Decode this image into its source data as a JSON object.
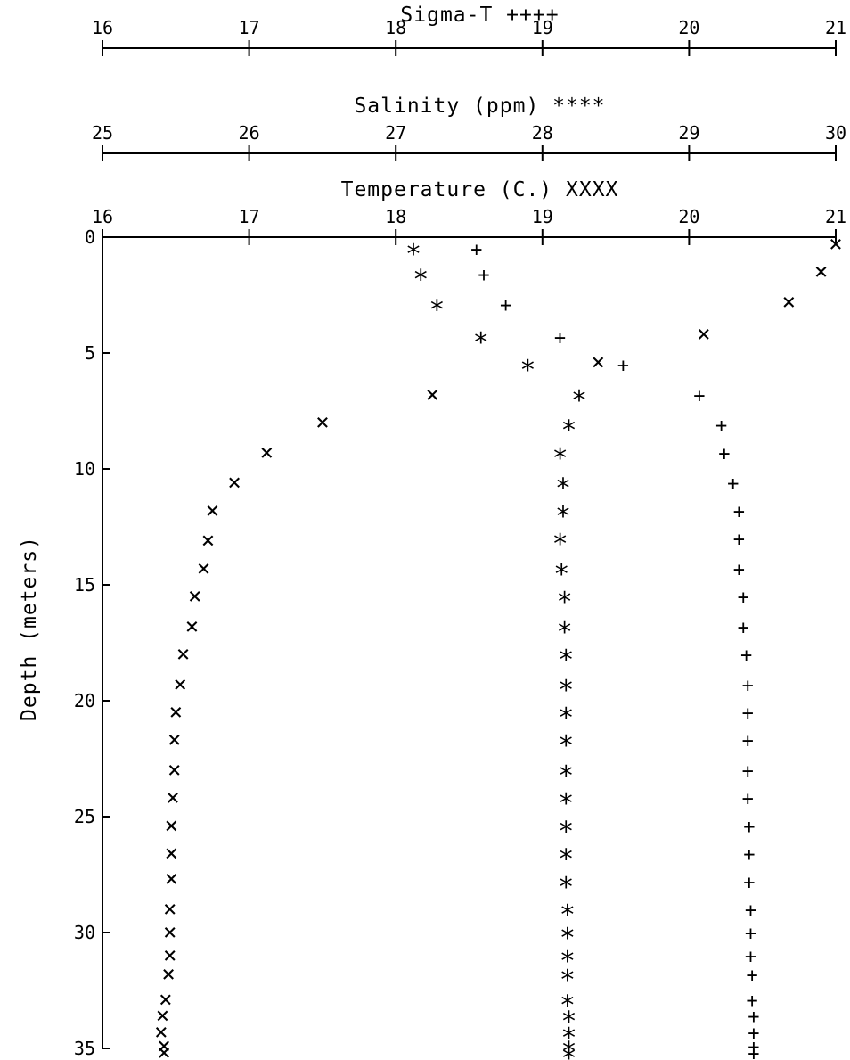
{
  "chart_data": {
    "type": "scatter",
    "ylabel": "Depth (meters)",
    "y_axis": {
      "label": "Depth (meters)",
      "range": [
        0,
        35
      ],
      "ticks": [
        0,
        5,
        10,
        15,
        20,
        25,
        30,
        35
      ],
      "inverted": true
    },
    "top_axes": [
      {
        "key": "sigma",
        "title": "Sigma-T  ++++",
        "range": [
          16,
          21
        ],
        "ticks": [
          16,
          17,
          18,
          19,
          20,
          21
        ]
      },
      {
        "key": "salinity",
        "title": "Salinity (ppm)  ****",
        "range": [
          25,
          30
        ],
        "ticks": [
          25,
          26,
          27,
          28,
          29,
          30
        ]
      },
      {
        "key": "temperature",
        "title": "Temperature (C.)  XXXX",
        "range": [
          16,
          21
        ],
        "ticks": [
          16,
          17,
          18,
          19,
          20,
          21
        ]
      }
    ],
    "series": [
      {
        "name": "Sigma-T",
        "marker": "+",
        "axis": "sigma",
        "points": [
          [
            18.55,
            0.5
          ],
          [
            18.6,
            1.6
          ],
          [
            18.75,
            2.9
          ],
          [
            19.12,
            4.3
          ],
          [
            19.55,
            5.5
          ],
          [
            20.07,
            6.8
          ],
          [
            20.22,
            8.1
          ],
          [
            20.24,
            9.3
          ],
          [
            20.3,
            10.6
          ],
          [
            20.34,
            11.8
          ],
          [
            20.34,
            13.0
          ],
          [
            20.34,
            14.3
          ],
          [
            20.37,
            15.5
          ],
          [
            20.37,
            16.8
          ],
          [
            20.39,
            18.0
          ],
          [
            20.4,
            19.3
          ],
          [
            20.4,
            20.5
          ],
          [
            20.4,
            21.7
          ],
          [
            20.4,
            23.0
          ],
          [
            20.4,
            24.2
          ],
          [
            20.41,
            25.4
          ],
          [
            20.41,
            26.6
          ],
          [
            20.41,
            27.8
          ],
          [
            20.42,
            29.0
          ],
          [
            20.42,
            30.0
          ],
          [
            20.42,
            31.0
          ],
          [
            20.43,
            31.8
          ],
          [
            20.43,
            32.9
          ],
          [
            20.44,
            33.6
          ],
          [
            20.44,
            34.3
          ],
          [
            20.44,
            34.9
          ],
          [
            20.44,
            35.2
          ]
        ]
      },
      {
        "name": "Salinity (ppm)",
        "marker": "*",
        "axis": "salinity",
        "points": [
          [
            27.12,
            0.5
          ],
          [
            27.17,
            1.6
          ],
          [
            27.28,
            2.9
          ],
          [
            27.58,
            4.3
          ],
          [
            27.9,
            5.5
          ],
          [
            28.25,
            6.8
          ],
          [
            28.18,
            8.1
          ],
          [
            28.12,
            9.3
          ],
          [
            28.14,
            10.6
          ],
          [
            28.14,
            11.8
          ],
          [
            28.12,
            13.0
          ],
          [
            28.13,
            14.3
          ],
          [
            28.15,
            15.5
          ],
          [
            28.15,
            16.8
          ],
          [
            28.16,
            18.0
          ],
          [
            28.16,
            19.3
          ],
          [
            28.16,
            20.5
          ],
          [
            28.16,
            21.7
          ],
          [
            28.16,
            23.0
          ],
          [
            28.16,
            24.2
          ],
          [
            28.16,
            25.4
          ],
          [
            28.16,
            26.6
          ],
          [
            28.16,
            27.8
          ],
          [
            28.17,
            29.0
          ],
          [
            28.17,
            30.0
          ],
          [
            28.17,
            31.0
          ],
          [
            28.17,
            31.8
          ],
          [
            28.17,
            32.9
          ],
          [
            28.18,
            33.6
          ],
          [
            28.18,
            34.3
          ],
          [
            28.18,
            34.9
          ],
          [
            28.18,
            35.2
          ]
        ]
      },
      {
        "name": "Temperature (C.)",
        "marker": "x",
        "axis": "temperature",
        "points": [
          [
            21.0,
            0.3
          ],
          [
            20.9,
            1.5
          ],
          [
            20.68,
            2.8
          ],
          [
            20.1,
            4.2
          ],
          [
            19.38,
            5.4
          ],
          [
            18.25,
            6.8
          ],
          [
            17.5,
            8.0
          ],
          [
            17.12,
            9.3
          ],
          [
            16.9,
            10.6
          ],
          [
            16.75,
            11.8
          ],
          [
            16.72,
            13.1
          ],
          [
            16.69,
            14.3
          ],
          [
            16.63,
            15.5
          ],
          [
            16.61,
            16.8
          ],
          [
            16.55,
            18.0
          ],
          [
            16.53,
            19.3
          ],
          [
            16.5,
            20.5
          ],
          [
            16.49,
            21.7
          ],
          [
            16.49,
            23.0
          ],
          [
            16.48,
            24.2
          ],
          [
            16.47,
            25.4
          ],
          [
            16.47,
            26.6
          ],
          [
            16.47,
            27.7
          ],
          [
            16.46,
            29.0
          ],
          [
            16.46,
            30.0
          ],
          [
            16.46,
            31.0
          ],
          [
            16.45,
            31.8
          ],
          [
            16.43,
            32.9
          ],
          [
            16.41,
            33.6
          ],
          [
            16.4,
            34.3
          ],
          [
            16.42,
            34.9
          ],
          [
            16.42,
            35.2
          ]
        ]
      }
    ]
  }
}
